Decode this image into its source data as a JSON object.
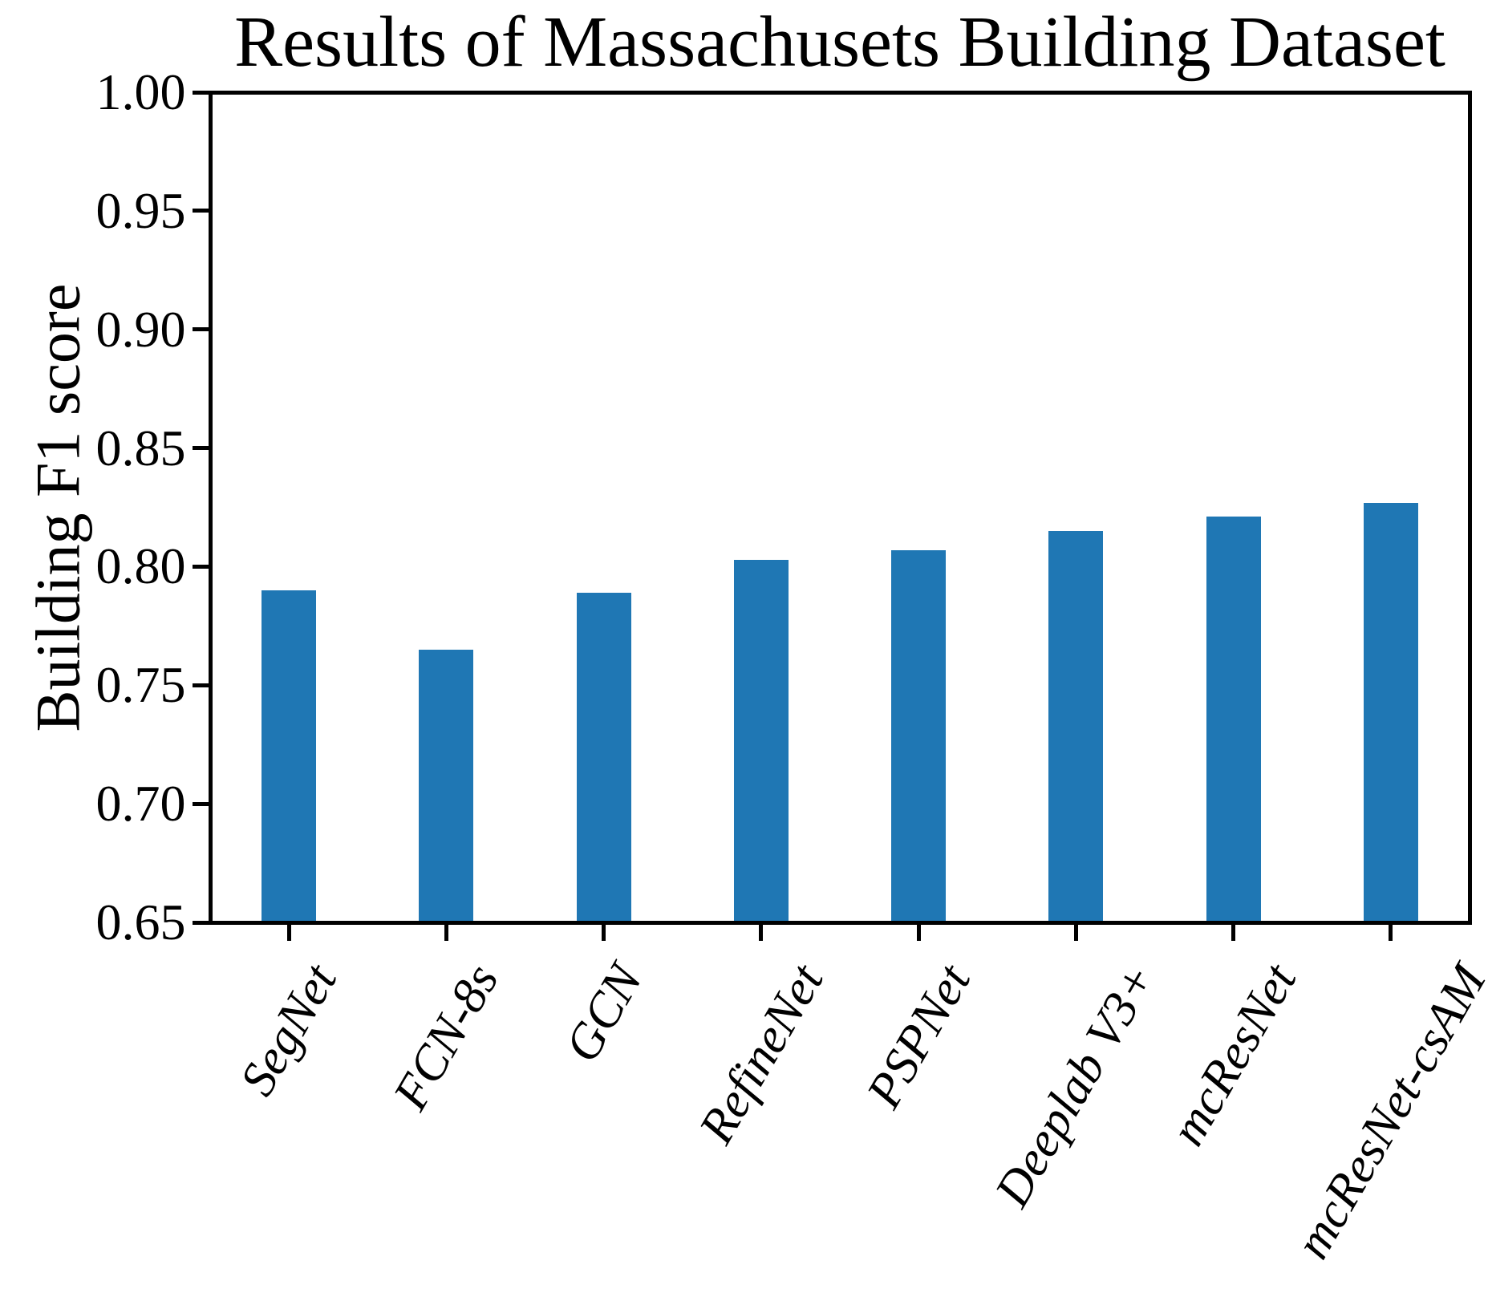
{
  "chart_data": {
    "type": "bar",
    "title": "Results of Massachusets Building Dataset",
    "ylabel": "Building F1 score",
    "xlabel": "",
    "categories": [
      "SegNet",
      "FCN-8s",
      "GCN",
      "RefineNet",
      "PSPNet",
      "Deeplab V3+",
      "mcResNet",
      "mcResNet-csAM"
    ],
    "values": [
      0.79,
      0.765,
      0.789,
      0.803,
      0.807,
      0.815,
      0.821,
      0.827
    ],
    "ylim": [
      0.65,
      1.0
    ],
    "ytick_labels": [
      "0.65",
      "0.70",
      "0.75",
      "0.80",
      "0.85",
      "0.90",
      "0.95",
      "1.00"
    ],
    "bar_color": "#1f77b4",
    "axis_color": "#000000",
    "grid": false,
    "legend": "none",
    "x_label_rotation_deg": 60
  }
}
